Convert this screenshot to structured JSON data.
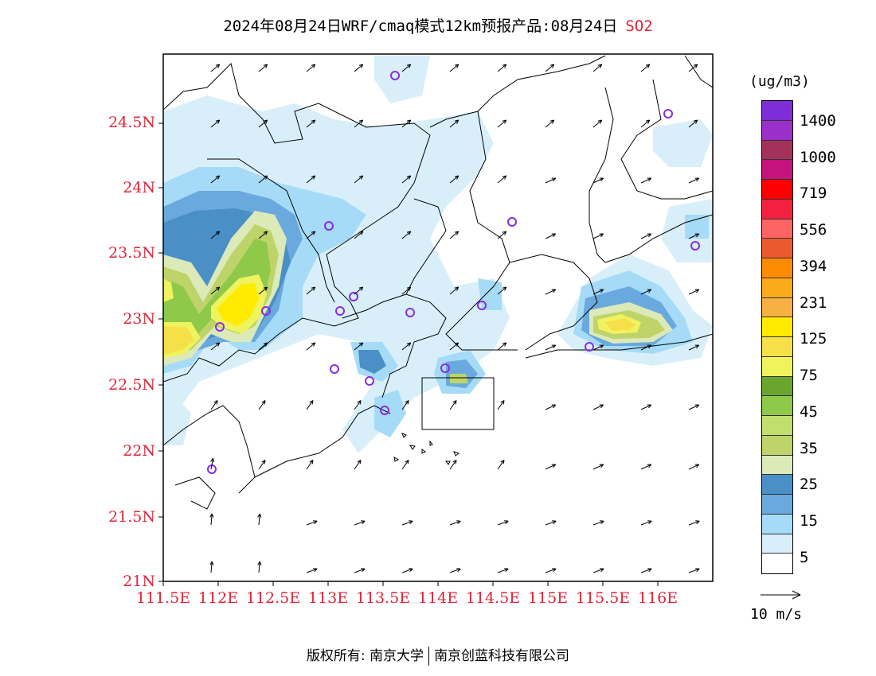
{
  "title": {
    "main": "2024年08月24日WRF/cmaq模式12km预报产品:08月24日",
    "pollutant": "SO2"
  },
  "map": {
    "lat_labels": [
      "24.5N",
      "24N",
      "23.5N",
      "23N",
      "22.5N",
      "22N",
      "21.5N",
      "21N"
    ],
    "lon_labels": [
      "111.5E",
      "112E",
      "112.5E",
      "113E",
      "113.5E",
      "114E",
      "114.5E",
      "115E",
      "115.5E",
      "116E"
    ],
    "lat_range": [
      21,
      25
    ],
    "lon_range": [
      111.5,
      116.5
    ],
    "station_marker": "circle",
    "wind_arrow": "arrow-icon"
  },
  "legend": {
    "unit": "(ug/m3)",
    "levels": [
      "1400",
      "1000",
      "719",
      "556",
      "394",
      "231",
      "125",
      "75",
      "45",
      "35",
      "25",
      "15",
      "5"
    ],
    "colors": [
      "#7d2ed6",
      "#9b2fc9",
      "#a3325b",
      "#c5137c",
      "#ff0000",
      "#f3213f",
      "#ff6464",
      "#ea5a2c",
      "#ff8c00",
      "#fbaa1a",
      "#f6b043",
      "#ffea00",
      "#f5e04a",
      "#eff35e",
      "#6aa62e",
      "#8ec94a",
      "#c1df6d",
      "#bed46a",
      "#dce9b9",
      "#4a8fc6",
      "#6aa9dd",
      "#a6dbf7",
      "#d8effa",
      "#ffffff"
    ]
  },
  "wind_reference": {
    "label": "10 m/s"
  },
  "footer": {
    "left": "版权所有: 南京大学",
    "right": "南京创蓝科技有限公司"
  }
}
